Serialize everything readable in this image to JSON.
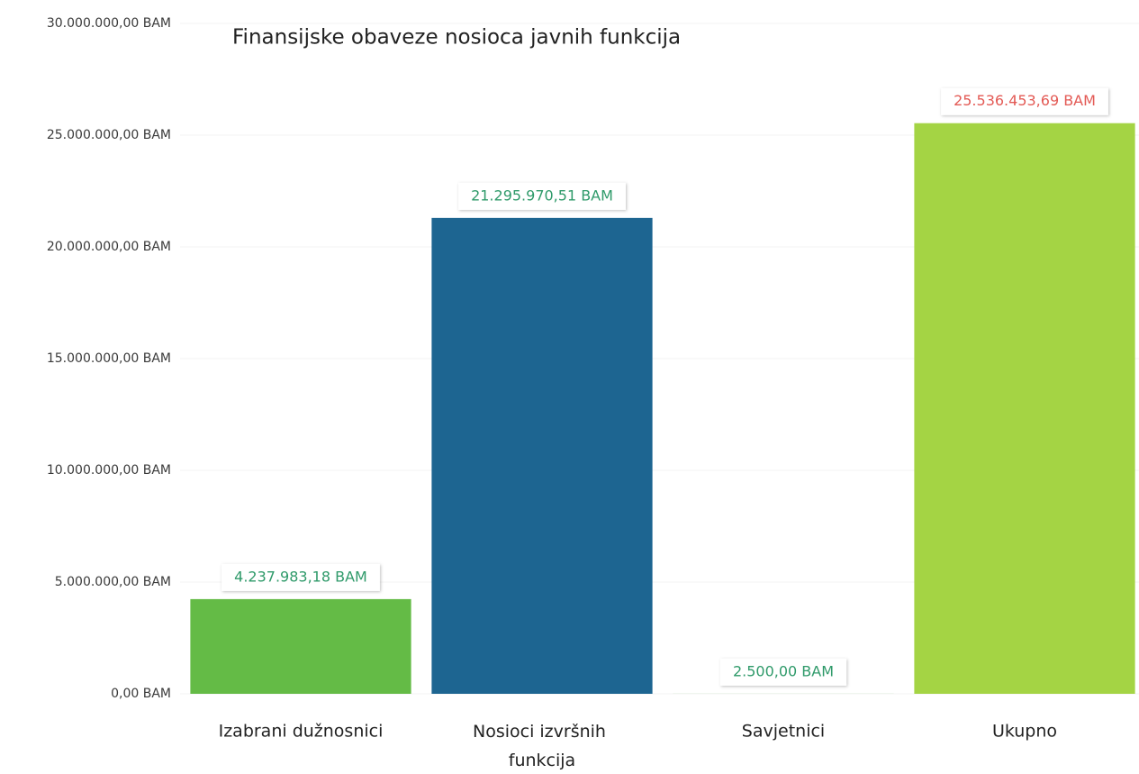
{
  "chart_data": {
    "type": "bar",
    "title": "Finansijske obaveze nosioca javnih funkcija",
    "categories": [
      "Izabrani dužnosnici",
      "Nosioci izvršnih funkcija",
      "Savjetnici",
      "Ukupno"
    ],
    "values": [
      4237983.18,
      21295970.51,
      2500,
      25536453.69
    ],
    "value_labels": [
      "4.237.983,18 BAM",
      "21.295.970,51 BAM",
      "2.500,00 BAM",
      "25.536.453,69 BAM"
    ],
    "colors": [
      "#64bb46",
      "#1d6591",
      "#64bb46",
      "#a4d444"
    ],
    "value_label_colors": [
      "#2f9a6a",
      "#2f9a6a",
      "#2f9a6a",
      "#e35a55"
    ],
    "ylim": [
      0,
      30000000
    ],
    "yticks": [
      {
        "value": 0,
        "label": "0,00 BAM"
      },
      {
        "value": 5000000,
        "label": "5.000.000,00 BAM"
      },
      {
        "value": 10000000,
        "label": "10.000.000,00 BAM"
      },
      {
        "value": 15000000,
        "label": "15.000.000,00 BAM"
      },
      {
        "value": 20000000,
        "label": "20.000.000,00 BAM"
      },
      {
        "value": 25000000,
        "label": "25.000.000,00 BAM"
      },
      {
        "value": 30000000,
        "label": "30.000.000,00 BAM"
      }
    ],
    "grid": true
  }
}
